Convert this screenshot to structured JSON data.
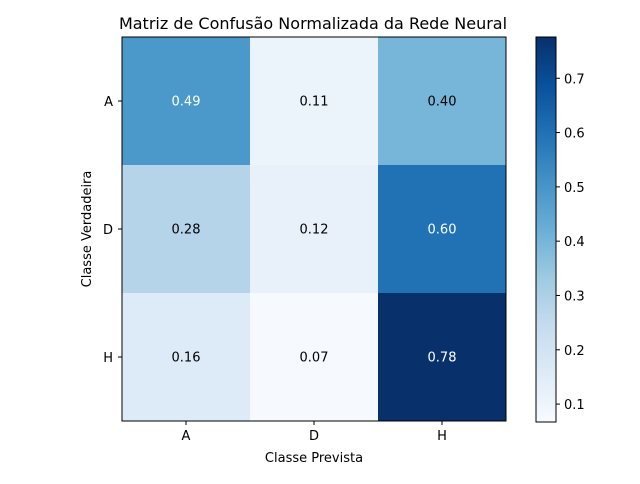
{
  "chart_data": {
    "type": "heatmap",
    "title": "Matriz de Confusão Normalizada da Rede Neural",
    "xlabel": "Classe Prevista",
    "ylabel": "Classe Verdadeira",
    "x_categories": [
      "A",
      "D",
      "H"
    ],
    "y_categories": [
      "A",
      "D",
      "H"
    ],
    "values": [
      [
        0.49,
        0.11,
        0.4
      ],
      [
        0.28,
        0.12,
        0.6
      ],
      [
        0.16,
        0.07,
        0.78
      ]
    ],
    "value_labels": [
      [
        "0.49",
        "0.11",
        "0.40"
      ],
      [
        "0.28",
        "0.12",
        "0.60"
      ],
      [
        "0.16",
        "0.07",
        "0.78"
      ]
    ],
    "colormap": "Blues",
    "colorbar": {
      "range": [
        0.067,
        0.776
      ],
      "ticks": [
        0.1,
        0.2,
        0.3,
        0.4,
        0.5,
        0.6,
        0.7
      ],
      "tick_labels": [
        "0.1",
        "0.2",
        "0.3",
        "0.4",
        "0.5",
        "0.6",
        "0.7"
      ]
    },
    "text_colors": {
      "dark_cell": "#ffffff",
      "light_cell": "#000000"
    },
    "grid": false
  }
}
